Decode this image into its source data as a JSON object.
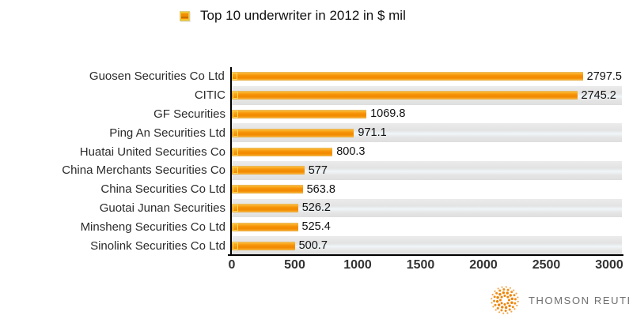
{
  "legend": {
    "label": "Top 10 underwriter in 2012 in $ mil"
  },
  "chart_data": {
    "type": "bar",
    "orientation": "horizontal",
    "title": "Top 10 underwriter in 2012 in $ mil",
    "categories": [
      "Guosen Securities Co Ltd",
      "CITIC",
      "GF Securities",
      "Ping An Securities Ltd",
      "Huatai United Securities Co",
      "China Merchants Securities Co",
      "China Securities Co Ltd",
      "Guotai Junan Securities",
      "Minsheng Securities Co Ltd",
      "Sinolink Securities Co Ltd"
    ],
    "values": [
      2797.5,
      2745.2,
      1069.8,
      971.1,
      800.3,
      577,
      563.8,
      526.2,
      525.4,
      500.7
    ],
    "value_labels": [
      "2797.5",
      "2745.2",
      "1069.8",
      "971.1",
      "800.3",
      "577",
      "563.8",
      "526.2",
      "525.4",
      "500.7"
    ],
    "xlabel": "",
    "ylabel": "",
    "xlim": [
      0,
      3000
    ],
    "x_ticks": [
      0,
      500,
      1000,
      1500,
      2000,
      2500,
      3000
    ],
    "grid": false,
    "legend_position": "top",
    "row_stripes": "alternate rows shaded (2nd, 4th, 6th, 8th, 10th)"
  },
  "footer": {
    "brand": "THOMSON REUTERS"
  },
  "colors": {
    "bar": "#F28A00",
    "bar_highlight": "#FCC04A",
    "bar_cap_border": "#FFD95A",
    "legend_marker_gold": "#F2C12E",
    "stripe": "#E6E6E6",
    "stripe_highlight": "#F0F6F9",
    "axis": "#000000",
    "tick_text": "#333333",
    "brand_text": "#6F6F6F",
    "brand_logo_orange": "#EE8200"
  }
}
